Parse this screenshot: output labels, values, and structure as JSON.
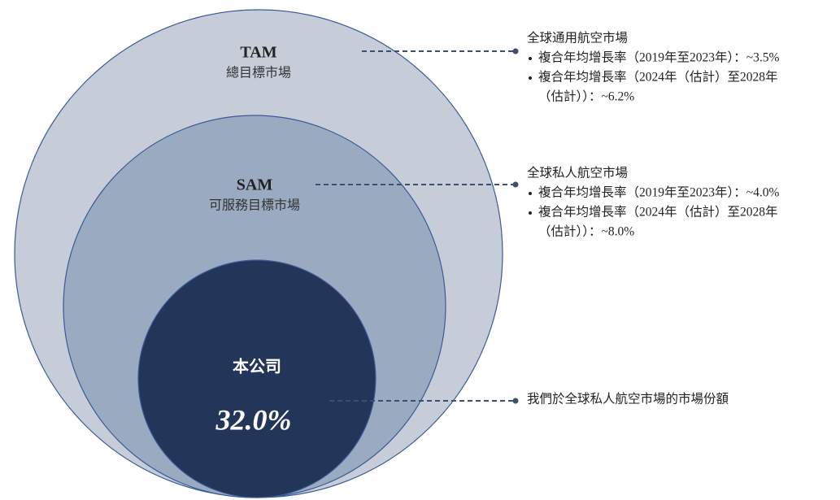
{
  "diagram": {
    "tam": {
      "label": "TAM",
      "sublabel": "總目標市場"
    },
    "sam": {
      "label": "SAM",
      "sublabel": "可服務目標市場"
    },
    "company": {
      "label": "本公司",
      "share": "32.0%"
    },
    "annotations": [
      {
        "title": "全球通用航空市場",
        "bullets": [
          [
            "複合年均增長率（2019年至2023年）：~3.5%"
          ],
          [
            "複合年均增長率（2024年（估計）至2028年",
            "（估計））：~6.2%"
          ]
        ]
      },
      {
        "title": "全球私人航空市場",
        "bullets": [
          [
            "複合年均增長率（2019年至2023年）：~4.0%"
          ],
          [
            "複合年均增長率（2024年（估計）至2028年",
            "（估計））：~8.0%"
          ]
        ]
      },
      {
        "title": "我們於全球私人航空市場的市場份額",
        "bullets": []
      }
    ]
  }
}
